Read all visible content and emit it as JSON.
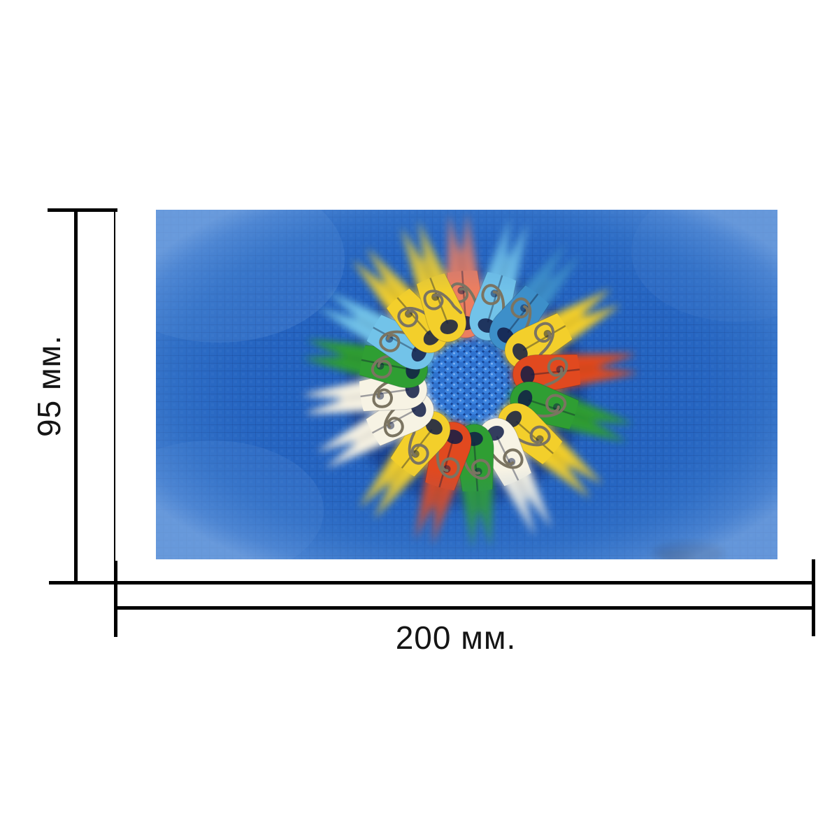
{
  "figure": {
    "type": "product-dimension-drawing",
    "height_label": "95 мм.",
    "width_label": "200 мм.",
    "line_color": "#000000",
    "text_color": "#151515",
    "background": "#ffffff"
  },
  "photo": {
    "alt": "Colorful mini plastic clothespins arranged head-to-center in a circle on bright blue mesh fabric, edges radially blurred",
    "colors": {
      "base_blue": "#2463c0",
      "grid_shade": "#12357f",
      "mesh_blue": "#16418f",
      "mesh_bump_light": "#3b84e0",
      "mesh_bump_mid": "#2f72cf",
      "mesh_highlight": "#7fb2f2",
      "spring_wire": "#7b7461",
      "hole_dark": "#101c46",
      "shadow_navy": "#081034",
      "vignette_edge": "#79a7e2"
    },
    "pin_colors": {
      "salmon": "#ec7e60",
      "lightblue": "#72c3e9",
      "blue": "#3d8fc9",
      "yellow": "#f3cf2b",
      "red": "#e1491f",
      "green": "#2f9e33",
      "white": "#f7f3e4"
    },
    "pins": [
      {
        "angle": -4,
        "color": "salmon"
      },
      {
        "angle": 17,
        "color": "lightblue"
      },
      {
        "angle": 38,
        "color": "blue"
      },
      {
        "angle": 60,
        "color": "yellow"
      },
      {
        "angle": 84,
        "color": "red"
      },
      {
        "angle": 108,
        "color": "green"
      },
      {
        "angle": 131,
        "color": "yellow"
      },
      {
        "angle": 154,
        "color": "white"
      },
      {
        "angle": 176,
        "color": "green"
      },
      {
        "angle": 196,
        "color": "red"
      },
      {
        "angle": 218,
        "color": "yellow"
      },
      {
        "angle": 242,
        "color": "white"
      },
      {
        "angle": 262,
        "color": "white"
      },
      {
        "angle": 281,
        "color": "green"
      },
      {
        "angle": 299,
        "color": "lightblue"
      },
      {
        "angle": 319,
        "color": "yellow"
      },
      {
        "angle": 339,
        "color": "yellow"
      }
    ]
  }
}
